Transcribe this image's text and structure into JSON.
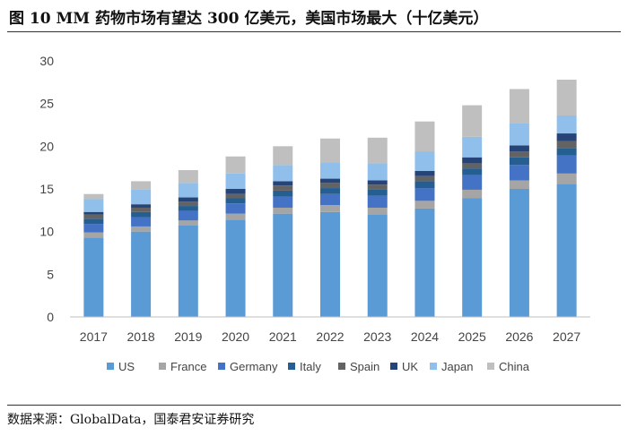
{
  "figure": {
    "title": "图 10 MM 药物市场有望达 300 亿美元，美国市场最大（十亿美元）",
    "source": "数据来源：GlobalData，国泰君安证券研究"
  },
  "chart_data": {
    "type": "bar",
    "stacked": true,
    "categories": [
      "2017",
      "2018",
      "2019",
      "2020",
      "2021",
      "2022",
      "2023",
      "2024",
      "2025",
      "2026",
      "2027"
    ],
    "ylim": [
      0,
      30
    ],
    "yticks": [
      0,
      5,
      10,
      15,
      20,
      25,
      30
    ],
    "grid": false,
    "legend_position": "bottom",
    "series": [
      {
        "name": "US",
        "color": "#5B9BD5",
        "values": [
          9.3,
          10.0,
          10.7,
          11.4,
          12.1,
          12.3,
          12.0,
          12.7,
          13.9,
          15.0,
          15.6
        ]
      },
      {
        "name": "France",
        "color": "#A5A5A5",
        "values": [
          0.6,
          0.6,
          0.6,
          0.7,
          0.7,
          0.8,
          0.8,
          0.9,
          1.0,
          1.0,
          1.2
        ]
      },
      {
        "name": "Germany",
        "color": "#4472C4",
        "values": [
          1.0,
          1.1,
          1.1,
          1.2,
          1.3,
          1.3,
          1.4,
          1.5,
          1.7,
          1.8,
          2.1
        ]
      },
      {
        "name": "Italy",
        "color": "#255E91",
        "values": [
          0.6,
          0.6,
          0.6,
          0.6,
          0.7,
          0.7,
          0.7,
          0.8,
          0.8,
          0.9,
          0.9
        ]
      },
      {
        "name": "Spain",
        "color": "#636363",
        "values": [
          0.5,
          0.5,
          0.5,
          0.5,
          0.6,
          0.6,
          0.6,
          0.6,
          0.6,
          0.7,
          0.8
        ]
      },
      {
        "name": "UK",
        "color": "#264478",
        "values": [
          0.3,
          0.4,
          0.5,
          0.6,
          0.5,
          0.5,
          0.5,
          0.6,
          0.7,
          0.7,
          0.9
        ]
      },
      {
        "name": "Japan",
        "color": "#8FBFEA",
        "values": [
          1.5,
          1.7,
          1.7,
          1.8,
          1.9,
          1.9,
          2.0,
          2.3,
          2.4,
          2.6,
          2.1
        ]
      },
      {
        "name": "China",
        "color": "#BFBFBF",
        "values": [
          0.6,
          1.0,
          1.5,
          2.0,
          2.2,
          2.8,
          3.0,
          3.5,
          3.7,
          4.0,
          4.2
        ]
      }
    ]
  }
}
